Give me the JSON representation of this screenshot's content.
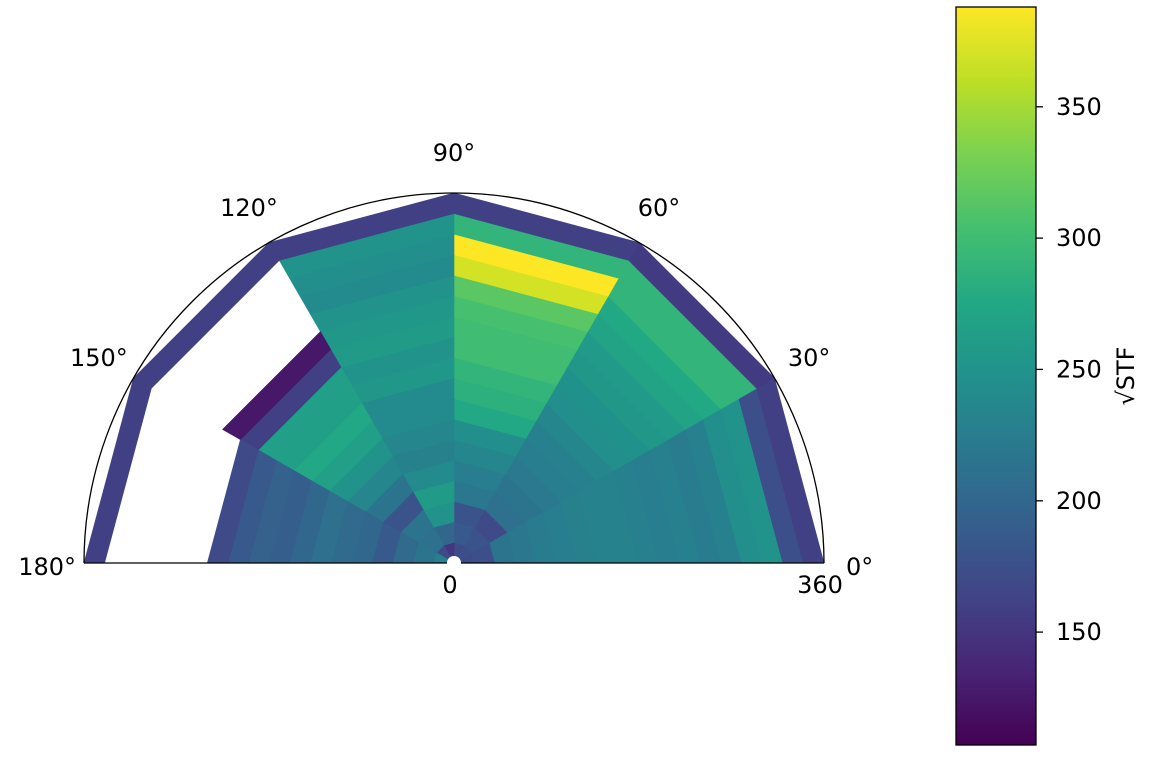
{
  "chart_data": {
    "type": "heatmap",
    "subtype": "polar-semicircle",
    "title": "",
    "theta_range_deg": [
      0,
      180
    ],
    "r_range": [
      0,
      360
    ],
    "angle_tick_labels": [
      "0°",
      "30°",
      "60°",
      "90°",
      "120°",
      "150°",
      "180°"
    ],
    "angle_tick_values": [
      0,
      30,
      60,
      90,
      120,
      150,
      180
    ],
    "radial_tick_labels": [
      "0",
      "360"
    ],
    "theta_edges": [
      0,
      30,
      60,
      90,
      120,
      150,
      180
    ],
    "r_edges": [
      0,
      20,
      40,
      60,
      80,
      100,
      120,
      140,
      160,
      180,
      200,
      220,
      240,
      260,
      280,
      300,
      320,
      340,
      360
    ],
    "values": [
      [
        170,
        175,
        215,
        218,
        223,
        225,
        230,
        232,
        232,
        228,
        225,
        228,
        223,
        228,
        245,
        250,
        175,
        160
      ],
      [
        175,
        180,
        170,
        210,
        215,
        220,
        225,
        228,
        235,
        245,
        248,
        255,
        258,
        270,
        275,
        290,
        290,
        155
      ],
      [
        170,
        185,
        180,
        218,
        225,
        235,
        245,
        275,
        285,
        290,
        300,
        300,
        305,
        315,
        370,
        390,
        290,
        160
      ],
      [
        150,
        200,
        250,
        260,
        240,
        230,
        235,
        240,
        240,
        255,
        250,
        260,
        255,
        250,
        240,
        245,
        250,
        160
      ],
      [
        170,
        210,
        215,
        180,
        215,
        235,
        250,
        265,
        275,
        265,
        265,
        160,
        125,
        null,
        null,
        null,
        null,
        160
      ],
      [
        230,
        215,
        205,
        185,
        200,
        205,
        210,
        200,
        190,
        195,
        185,
        170,
        null,
        null,
        null,
        null,
        null,
        160
      ]
    ],
    "colorbar": {
      "colormap": "viridis",
      "vmin": 107,
      "vmax": 388,
      "tick_values": [
        150,
        200,
        250,
        300,
        350
      ],
      "tick_labels": [
        "150",
        "200",
        "250",
        "300",
        "350"
      ],
      "label": "√STF"
    }
  }
}
